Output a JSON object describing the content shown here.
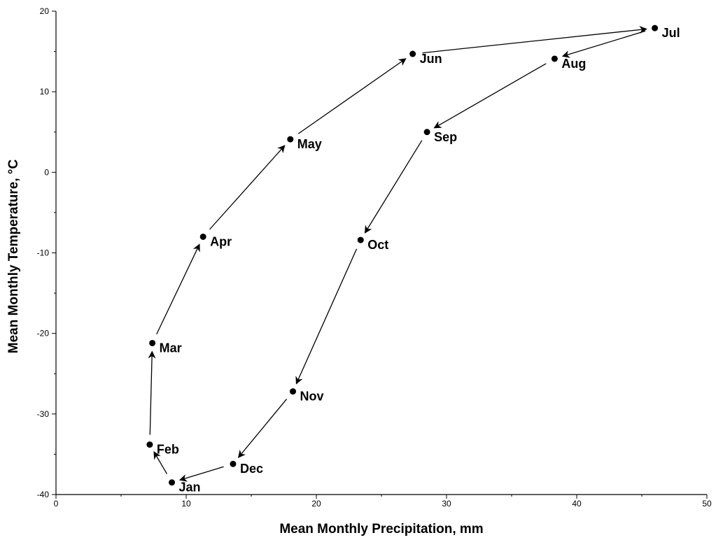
{
  "chart_data": {
    "type": "scatter",
    "title": "",
    "xlabel": "Mean Monthly Precipitation, mm",
    "ylabel": "Mean Monthly Temperature, °C",
    "xlim": [
      0,
      50
    ],
    "ylim": [
      -40,
      20
    ],
    "x_ticks": [
      0,
      10,
      20,
      30,
      40,
      50
    ],
    "y_ticks": [
      -40,
      -30,
      -20,
      -10,
      0,
      10,
      20
    ],
    "grid": false,
    "legend": "none",
    "marker_color": "#000000",
    "connection": "arrows between consecutive months",
    "points": [
      {
        "label": "Jan",
        "x": 8.9,
        "y": -38.5
      },
      {
        "label": "Feb",
        "x": 7.2,
        "y": -33.8
      },
      {
        "label": "Mar",
        "x": 7.4,
        "y": -21.2
      },
      {
        "label": "Apr",
        "x": 11.3,
        "y": -8.0
      },
      {
        "label": "May",
        "x": 18.0,
        "y": 4.1
      },
      {
        "label": "Jun",
        "x": 27.4,
        "y": 14.7
      },
      {
        "label": "Jul",
        "x": 46.0,
        "y": 17.9
      },
      {
        "label": "Aug",
        "x": 38.3,
        "y": 14.1
      },
      {
        "label": "Sep",
        "x": 28.5,
        "y": 5.0
      },
      {
        "label": "Oct",
        "x": 23.4,
        "y": -8.4
      },
      {
        "label": "Nov",
        "x": 18.2,
        "y": -27.2
      },
      {
        "label": "Dec",
        "x": 13.6,
        "y": -36.2
      }
    ]
  }
}
